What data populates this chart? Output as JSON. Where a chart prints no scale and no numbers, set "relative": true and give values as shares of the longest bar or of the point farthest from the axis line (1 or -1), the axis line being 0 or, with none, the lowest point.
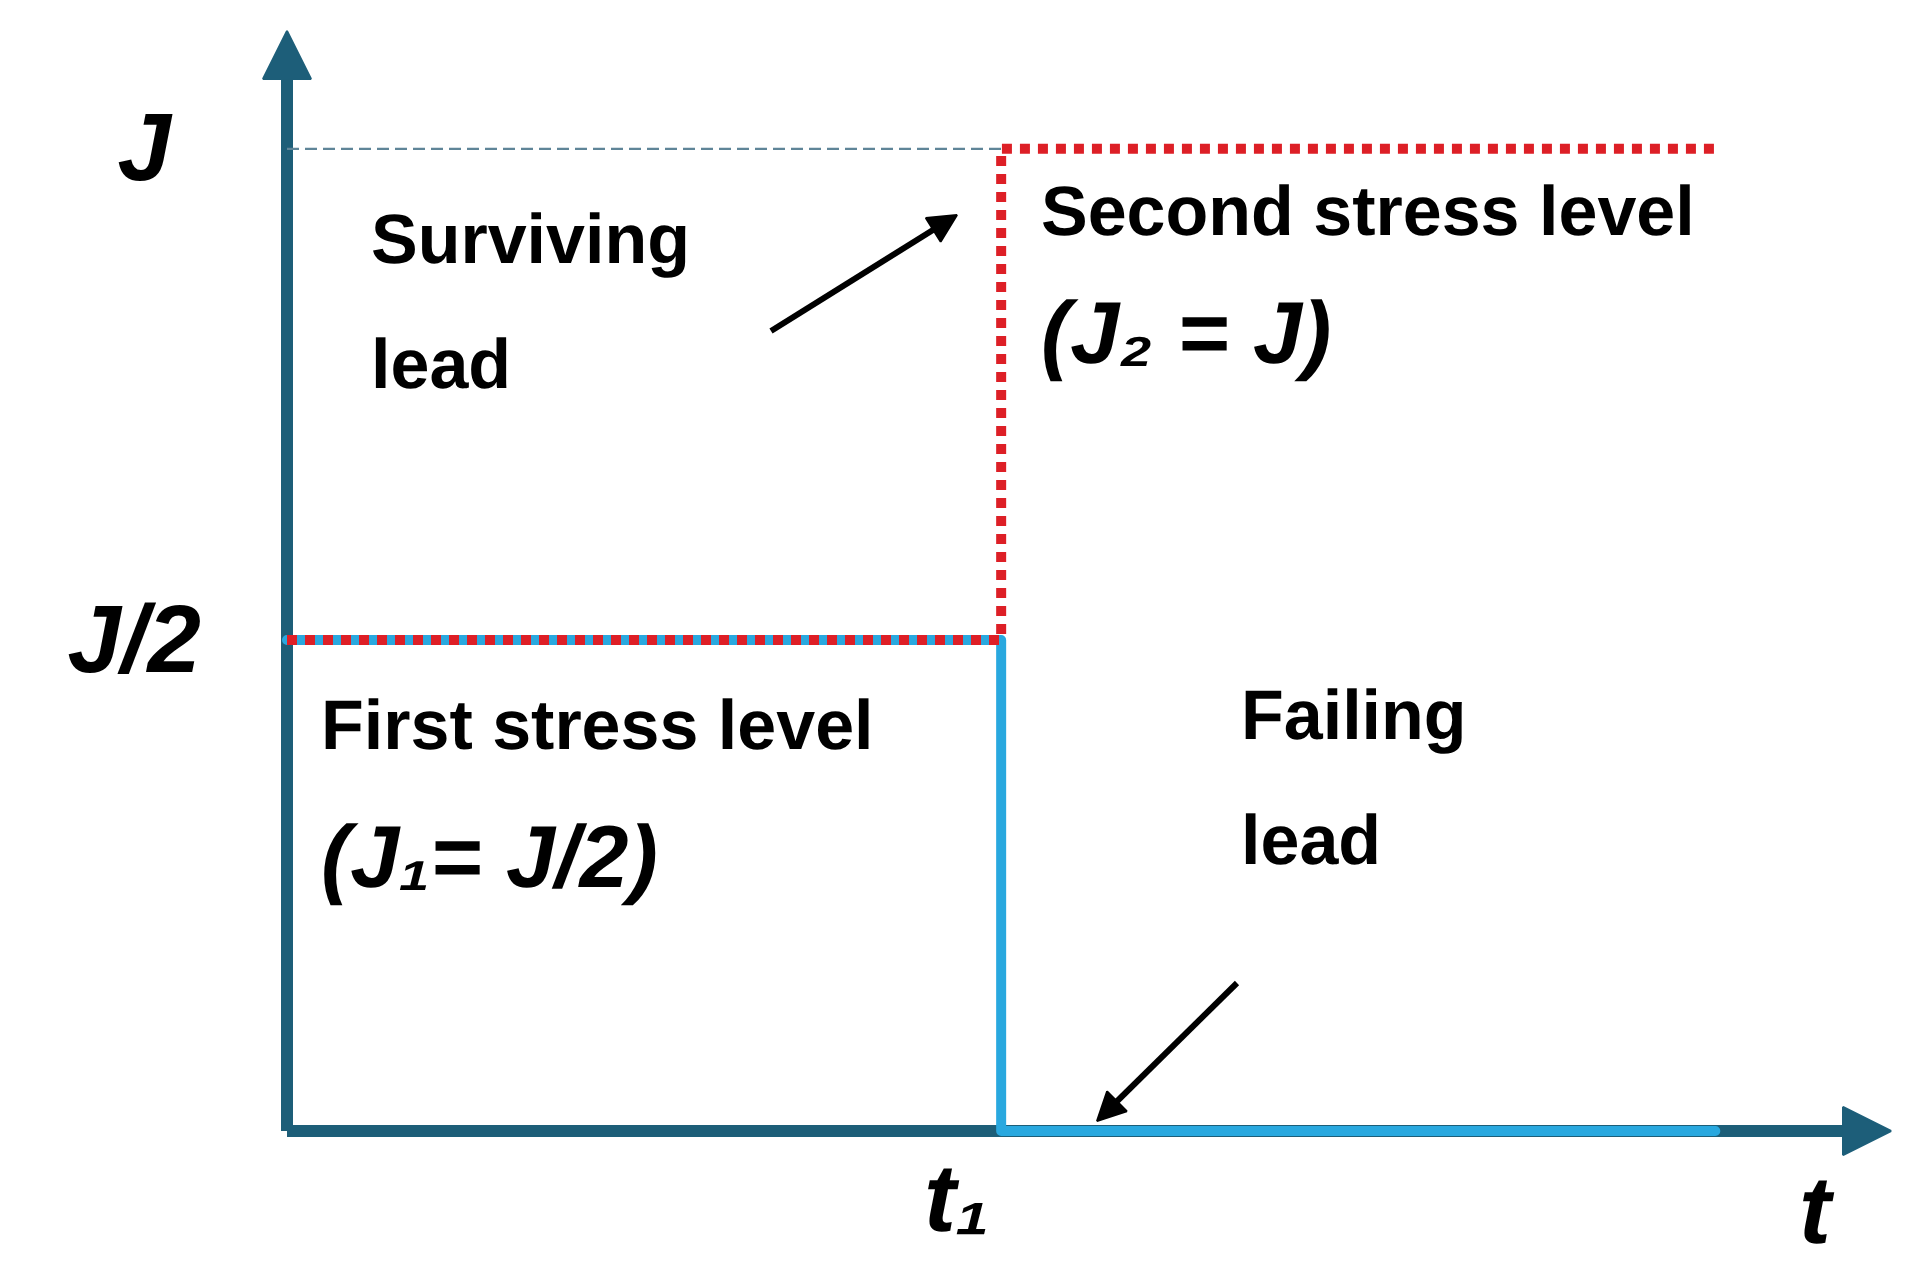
{
  "chart_data": {
    "type": "step",
    "relative": true,
    "xlabel": "t",
    "categories": [
      null,
      null,
      null
    ],
    "series": [
      {
        "type": "line",
        "color": "#5f8598",
        "line_style": "dashed",
        "values": [
          1,
          1,
          null
        ]
      },
      {
        "color": "#29a8df",
        "line_style": "solid",
        "values": [
          0.5,
          0,
          0
        ]
      },
      {
        "color": "#dd1f26",
        "line_style": "dotted",
        "values": [
          0.5,
          1,
          1
        ]
      }
    ],
    "grid": false,
    "annotations": [
      "J",
      "Surviving lead",
      "Second stress level",
      "(J₂ = J)",
      "J/2",
      "First stress level",
      "(J₁= J/2)",
      "Failing lead",
      "t₁"
    ]
  }
}
